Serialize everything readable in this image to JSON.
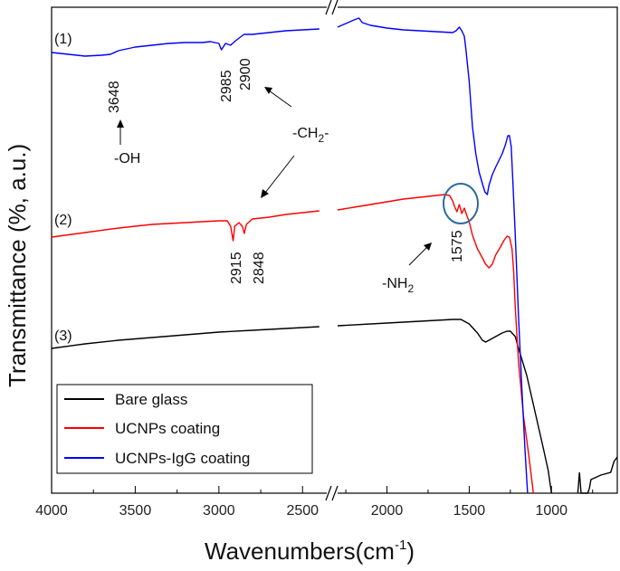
{
  "chart_data": {
    "type": "line",
    "xlabel": "Wavenumbers(cm",
    "xlabel_sup": "-1",
    "xlabel_tail": ")",
    "ylabel": "Transmittance (%, a.u.)",
    "x_break": [
      2300,
      2350
    ],
    "xlim": [
      4000,
      600
    ],
    "x_ticks": [
      4000,
      3500,
      3000,
      2500,
      2000,
      1500,
      1000
    ],
    "x_tick_labels": [
      "4000",
      "3500",
      "3000",
      "2500",
      "2000",
      "1500",
      "1000"
    ],
    "grid": false,
    "legend_position": "bottom-left",
    "series": [
      {
        "name": "Bare glass",
        "color": "#000000",
        "curve_label": "(3)",
        "points": [
          [
            4000,
            385
          ],
          [
            3800,
            380
          ],
          [
            3600,
            376
          ],
          [
            3400,
            373
          ],
          [
            3200,
            370
          ],
          [
            3000,
            367
          ],
          [
            2800,
            365
          ],
          [
            2600,
            363
          ],
          [
            2400,
            361
          ],
          [
            2300,
            360
          ],
          [
            2000,
            357
          ],
          [
            1800,
            355
          ],
          [
            1600,
            353
          ],
          [
            1550,
            353
          ],
          [
            1500,
            358
          ],
          [
            1450,
            368
          ],
          [
            1420,
            376
          ],
          [
            1400,
            378
          ],
          [
            1350,
            373
          ],
          [
            1300,
            368
          ],
          [
            1270,
            366
          ],
          [
            1250,
            366
          ],
          [
            1220,
            372
          ],
          [
            1200,
            385
          ],
          [
            1150,
            415
          ],
          [
            1100,
            455
          ],
          [
            1050,
            495
          ],
          [
            1020,
            520
          ],
          [
            1000,
            545
          ]
        ]
      },
      {
        "name": "UCNPs coating",
        "color": "#ff0000",
        "curve_label": "(2)",
        "points": [
          [
            4000,
            262
          ],
          [
            3800,
            257
          ],
          [
            3600,
            252
          ],
          [
            3400,
            248
          ],
          [
            3200,
            246
          ],
          [
            3000,
            244
          ],
          [
            2950,
            244
          ],
          [
            2930,
            250
          ],
          [
            2915,
            266
          ],
          [
            2905,
            250
          ],
          [
            2880,
            246
          ],
          [
            2860,
            250
          ],
          [
            2848,
            258
          ],
          [
            2836,
            248
          ],
          [
            2800,
            242
          ],
          [
            2700,
            240
          ],
          [
            2600,
            237
          ],
          [
            2500,
            235
          ],
          [
            2400,
            233
          ],
          [
            2300,
            232
          ],
          [
            2200,
            229
          ],
          [
            2100,
            226
          ],
          [
            2000,
            223
          ],
          [
            1900,
            220
          ],
          [
            1800,
            218
          ],
          [
            1700,
            216
          ],
          [
            1650,
            215
          ],
          [
            1620,
            216
          ],
          [
            1600,
            222
          ],
          [
            1590,
            228
          ],
          [
            1575,
            234
          ],
          [
            1560,
            226
          ],
          [
            1545,
            236
          ],
          [
            1530,
            230
          ],
          [
            1515,
            238
          ],
          [
            1500,
            245
          ],
          [
            1480,
            260
          ],
          [
            1450,
            275
          ],
          [
            1420,
            285
          ],
          [
            1400,
            292
          ],
          [
            1380,
            296
          ],
          [
            1360,
            292
          ],
          [
            1340,
            282
          ],
          [
            1310,
            273
          ],
          [
            1290,
            266
          ],
          [
            1270,
            261
          ],
          [
            1255,
            262
          ],
          [
            1240,
            275
          ],
          [
            1230,
            300
          ],
          [
            1220,
            340
          ],
          [
            1200,
            400
          ],
          [
            1170,
            460
          ],
          [
            1140,
            500
          ],
          [
            1120,
            530
          ],
          [
            1110,
            545
          ]
        ]
      },
      {
        "name": "UCNPs-IgG coating",
        "color": "#0000ff",
        "curve_label": "(1)",
        "points": [
          [
            4000,
            58
          ],
          [
            3900,
            60
          ],
          [
            3800,
            62
          ],
          [
            3700,
            61
          ],
          [
            3648,
            60
          ],
          [
            3600,
            56
          ],
          [
            3500,
            52
          ],
          [
            3400,
            50
          ],
          [
            3300,
            48
          ],
          [
            3200,
            47
          ],
          [
            3100,
            47
          ],
          [
            3050,
            46
          ],
          [
            3000,
            48
          ],
          [
            2985,
            55
          ],
          [
            2960,
            48
          ],
          [
            2930,
            50
          ],
          [
            2900,
            45
          ],
          [
            2850,
            38
          ],
          [
            2800,
            38
          ],
          [
            2700,
            36
          ],
          [
            2600,
            34
          ],
          [
            2500,
            33
          ],
          [
            2400,
            32
          ],
          [
            2300,
            30
          ],
          [
            2200,
            22
          ],
          [
            2170,
            20
          ],
          [
            2150,
            25
          ],
          [
            2100,
            28
          ],
          [
            2000,
            31
          ],
          [
            1900,
            33
          ],
          [
            1800,
            34
          ],
          [
            1700,
            35
          ],
          [
            1600,
            36
          ],
          [
            1580,
            34
          ],
          [
            1560,
            30
          ],
          [
            1545,
            34
          ],
          [
            1530,
            40
          ],
          [
            1520,
            55
          ],
          [
            1500,
            90
          ],
          [
            1480,
            140
          ],
          [
            1460,
            170
          ],
          [
            1440,
            190
          ],
          [
            1420,
            203
          ],
          [
            1405,
            212
          ],
          [
            1390,
            215
          ],
          [
            1380,
            205
          ],
          [
            1360,
            193
          ],
          [
            1340,
            185
          ],
          [
            1300,
            170
          ],
          [
            1280,
            160
          ],
          [
            1265,
            150
          ],
          [
            1255,
            150
          ],
          [
            1245,
            162
          ],
          [
            1235,
            200
          ],
          [
            1220,
            260
          ],
          [
            1200,
            350
          ],
          [
            1180,
            430
          ],
          [
            1160,
            500
          ],
          [
            1145,
            545
          ]
        ]
      }
    ],
    "tail": {
      "color": "#000000",
      "points": [
        [
          840,
          545
        ],
        [
          830,
          522
        ],
        [
          820,
          545
        ],
        [
          780,
          545
        ],
        [
          770,
          540
        ],
        [
          760,
          530
        ],
        [
          700,
          525
        ],
        [
          640,
          522
        ],
        [
          620,
          510
        ],
        [
          600,
          505
        ]
      ]
    },
    "annotations": {
      "wavenumber_labels": [
        "3648",
        "2985",
        "2900",
        "2915",
        "2848",
        "1575"
      ],
      "oh_label": "-OH",
      "ch2_label": "-CH",
      "ch2_sub": "2",
      "ch2_tail": "-",
      "nh2_label": "-NH",
      "nh2_sub": "2"
    },
    "highlight_color": "#2e6b9e"
  },
  "legend": {
    "items": [
      {
        "label": "Bare glass",
        "color": "#000000"
      },
      {
        "label": "UCNPs coating",
        "color": "#ff0000"
      },
      {
        "label": "UCNPs-IgG coating",
        "color": "#0000ff"
      }
    ]
  }
}
